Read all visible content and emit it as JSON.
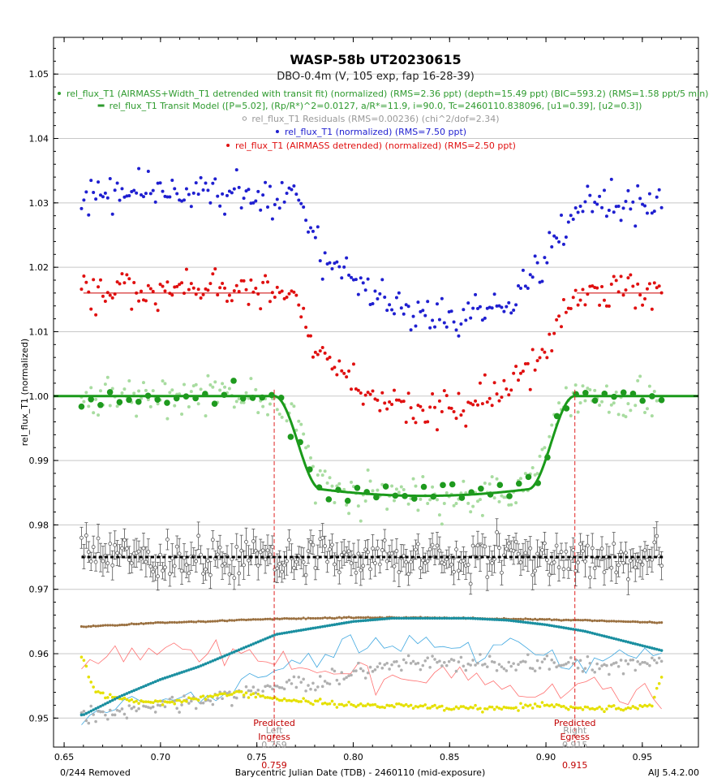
{
  "chart_data": {
    "type": "scatter",
    "title": "WASP-58b UT20230615",
    "subtitle": "DBO-0.4m (V, 105 exp, fap 16-28-39)",
    "xlabel": "Barycentric Julian Date (TDB) - 2460110 (mid-exposure)",
    "ylabel": "rel_flux_T1 (normalized)",
    "xlim": [
      0.6445,
      0.9791
    ],
    "ylim": [
      0.9455,
      1.0557
    ],
    "x_ticks": [
      "0.65",
      "0.70",
      "0.75",
      "0.80",
      "0.85",
      "0.90",
      "0.95"
    ],
    "y_ticks": [
      "0.95",
      "0.96",
      "0.97",
      "0.98",
      "0.99",
      "1.00",
      "1.01",
      "1.02",
      "1.03",
      "1.04",
      "1.05"
    ],
    "grid": true,
    "legend": [
      {
        "text": "rel_flux_T1 (AIRMASS+Width_T1 detrended with transit fit) (normalized) (RMS=2.36 ppt) (depth=15.49 ppt) (BIC=593.2) (RMS=1.58 ppt/5 min)",
        "color": "#2e9a2e",
        "marker": "dot"
      },
      {
        "text": "rel_flux_T1 Transit Model ([P=5.02], (Rp/R*)^2=0.0127, a/R*=11.9, i=90.0, Tc=2460110.838096, [u1=0.39], [u2=0.3])",
        "color": "#2e9a2e",
        "marker": "dash"
      },
      {
        "text": "rel_flux_T1 Residuals (RMS=0.00236) (chi^2/dof=2.34)",
        "color": "#999999",
        "marker": "circle"
      },
      {
        "text": "rel_flux_T1 (normalized) (RMS=7.50 ppt)",
        "color": "#1f1fd0",
        "marker": "dot"
      },
      {
        "text": "rel_flux_T1 (AIRMASS detrended) (normalized) (RMS=2.50 ppt)",
        "color": "#e01010",
        "marker": "dot"
      }
    ],
    "transit": {
      "tc": 0.838096,
      "depth_ppt": 15.49,
      "ingress": 0.759,
      "egress": 0.915
    },
    "baselines": {
      "blue": 1.03,
      "red": 1.016,
      "model": 1.0,
      "residual": 0.975
    },
    "series": [
      {
        "name": "rel_flux_T1 (normalized)",
        "color": "#1f1fd0",
        "x": [
          0.66,
          0.67,
          0.68,
          0.69,
          0.7,
          0.71,
          0.72,
          0.73,
          0.74,
          0.75,
          0.76,
          0.77,
          0.78,
          0.79,
          0.8,
          0.81,
          0.82,
          0.83,
          0.84,
          0.85,
          0.86,
          0.87,
          0.88,
          0.89,
          0.9,
          0.91,
          0.92,
          0.93,
          0.94,
          0.95,
          0.96
        ],
        "values": [
          1.031,
          1.032,
          1.031,
          1.033,
          1.032,
          1.031,
          1.032,
          1.031,
          1.032,
          1.031,
          1.03,
          1.031,
          1.023,
          1.02,
          1.018,
          1.016,
          1.015,
          1.013,
          1.012,
          1.012,
          1.013,
          1.014,
          1.015,
          1.018,
          1.021,
          1.027,
          1.03,
          1.031,
          1.03,
          1.03,
          1.03
        ]
      },
      {
        "name": "rel_flux_T1 (AIRMASS detrended) (normalized)",
        "color": "#e01010",
        "x": [
          0.66,
          0.67,
          0.68,
          0.69,
          0.7,
          0.71,
          0.72,
          0.73,
          0.74,
          0.75,
          0.76,
          0.77,
          0.78,
          0.79,
          0.8,
          0.81,
          0.82,
          0.83,
          0.84,
          0.85,
          0.86,
          0.87,
          0.88,
          0.89,
          0.9,
          0.91,
          0.92,
          0.93,
          0.94,
          0.95,
          0.96
        ],
        "values": [
          1.016,
          1.016,
          1.017,
          1.016,
          1.016,
          1.017,
          1.016,
          1.017,
          1.016,
          1.016,
          1.016,
          1.016,
          1.008,
          1.004,
          1.002,
          1.0,
          0.999,
          0.998,
          0.998,
          0.998,
          0.999,
          1.0,
          1.001,
          1.004,
          1.007,
          1.013,
          1.016,
          1.016,
          1.016,
          1.016,
          1.016
        ]
      },
      {
        "name": "rel_flux_T1 (AIRMASS+Width_T1 detrended with transit fit) (normalized)",
        "color": "#2e9a2e",
        "x": [
          0.66,
          0.67,
          0.68,
          0.69,
          0.7,
          0.71,
          0.72,
          0.73,
          0.74,
          0.75,
          0.76,
          0.77,
          0.78,
          0.79,
          0.8,
          0.81,
          0.82,
          0.83,
          0.84,
          0.85,
          0.86,
          0.87,
          0.88,
          0.89,
          0.9,
          0.91,
          0.92,
          0.93,
          0.94,
          0.95,
          0.96
        ],
        "values": [
          1.0,
          0.9995,
          1.0005,
          1.0,
          1.0005,
          1.0,
          1.001,
          1.0,
          0.9995,
          1.0,
          0.999,
          0.997,
          0.988,
          0.986,
          0.985,
          0.9848,
          0.9845,
          0.9845,
          0.9843,
          0.9845,
          0.9847,
          0.985,
          0.9855,
          0.987,
          0.992,
          1.0,
          1.0005,
          1.0,
          0.999,
          1.0,
          1.0
        ]
      },
      {
        "name": "rel_flux_T1 Residuals",
        "color": "#555555",
        "x": [
          0.66,
          0.67,
          0.68,
          0.69,
          0.7,
          0.71,
          0.72,
          0.73,
          0.74,
          0.75,
          0.76,
          0.77,
          0.78,
          0.79,
          0.8,
          0.81,
          0.82,
          0.83,
          0.84,
          0.85,
          0.86,
          0.87,
          0.88,
          0.89,
          0.9,
          0.91,
          0.92,
          0.93,
          0.94,
          0.95,
          0.96
        ],
        "values": [
          0.975,
          0.9745,
          0.9755,
          0.975,
          0.974,
          0.9755,
          0.975,
          0.9745,
          0.975,
          0.9755,
          0.975,
          0.9745,
          0.9755,
          0.975,
          0.975,
          0.9755,
          0.9745,
          0.975,
          0.9755,
          0.975,
          0.9745,
          0.975,
          0.9755,
          0.975,
          0.9745,
          0.975,
          0.9755,
          0.975,
          0.9745,
          0.975,
          0.975
        ]
      },
      {
        "name": "",
        "color": "#1a8fa0",
        "x": [
          0.66,
          0.68,
          0.7,
          0.72,
          0.74,
          0.76,
          0.78,
          0.8,
          0.82,
          0.84,
          0.86,
          0.88,
          0.9,
          0.92,
          0.94,
          0.96
        ],
        "values": [
          0.9505,
          0.9535,
          0.956,
          0.958,
          0.9605,
          0.963,
          0.964,
          0.965,
          0.9655,
          0.9655,
          0.9655,
          0.9652,
          0.9645,
          0.9635,
          0.962,
          0.9605
        ]
      },
      {
        "name": "",
        "color": "#9a7040",
        "x": [
          0.66,
          0.68,
          0.7,
          0.72,
          0.74,
          0.76,
          0.78,
          0.8,
          0.82,
          0.84,
          0.86,
          0.88,
          0.9,
          0.92,
          0.94,
          0.96
        ],
        "values": [
          0.9642,
          0.9645,
          0.9648,
          0.965,
          0.9652,
          0.9654,
          0.9655,
          0.9656,
          0.9656,
          0.9656,
          0.9655,
          0.9654,
          0.9653,
          0.9652,
          0.965,
          0.9648
        ]
      },
      {
        "name": "",
        "color": "#e5e000",
        "x": [
          0.66,
          0.665,
          0.67,
          0.68,
          0.7,
          0.72,
          0.74,
          0.76,
          0.78,
          0.8,
          0.82,
          0.84,
          0.86,
          0.88,
          0.9,
          0.92,
          0.94,
          0.955,
          0.96
        ],
        "values": [
          0.959,
          0.9545,
          0.9535,
          0.9528,
          0.9525,
          0.953,
          0.954,
          0.953,
          0.9525,
          0.952,
          0.952,
          0.9518,
          0.9515,
          0.9515,
          0.952,
          0.9515,
          0.9515,
          0.952,
          0.9565
        ]
      },
      {
        "name": "",
        "color": "#aaaaaa",
        "x": [
          0.66,
          0.68,
          0.7,
          0.72,
          0.74,
          0.76,
          0.78,
          0.8,
          0.82,
          0.84,
          0.86,
          0.88,
          0.9,
          0.92,
          0.94,
          0.96
        ],
        "values": [
          0.9505,
          0.951,
          0.952,
          0.9525,
          0.9535,
          0.955,
          0.9555,
          0.957,
          0.958,
          0.9585,
          0.9585,
          0.958,
          0.959,
          0.958,
          0.9585,
          0.959
        ]
      },
      {
        "name": "",
        "color": "#ff7070",
        "x": [
          0.66,
          0.68,
          0.7,
          0.72,
          0.74,
          0.76,
          0.78,
          0.8,
          0.82,
          0.84,
          0.86,
          0.88,
          0.9,
          0.92,
          0.94,
          0.96
        ],
        "values": [
          0.958,
          0.9595,
          0.961,
          0.96,
          0.9605,
          0.9585,
          0.9565,
          0.9575,
          0.956,
          0.957,
          0.9555,
          0.9545,
          0.9535,
          0.955,
          0.954,
          0.953
        ]
      },
      {
        "name": "",
        "color": "#40a8e0",
        "x": [
          0.66,
          0.68,
          0.7,
          0.72,
          0.74,
          0.76,
          0.78,
          0.8,
          0.82,
          0.84,
          0.86,
          0.88,
          0.9,
          0.92,
          0.94,
          0.96
        ],
        "values": [
          0.9505,
          0.9515,
          0.9525,
          0.9535,
          0.955,
          0.957,
          0.959,
          0.962,
          0.961,
          0.962,
          0.9605,
          0.961,
          0.9595,
          0.9585,
          0.961,
          0.9595
        ]
      }
    ],
    "annotations": {
      "ingress_label": [
        "Predicted",
        "Ingress"
      ],
      "ingress_value": "0.759",
      "ingress_sub": "Left",
      "egress_label": [
        "Predicted",
        "Egress"
      ],
      "egress_value": "0.915",
      "egress_sub": "Right",
      "removed": "0/244 Removed",
      "version": "AIJ 5.4.2.00"
    }
  }
}
